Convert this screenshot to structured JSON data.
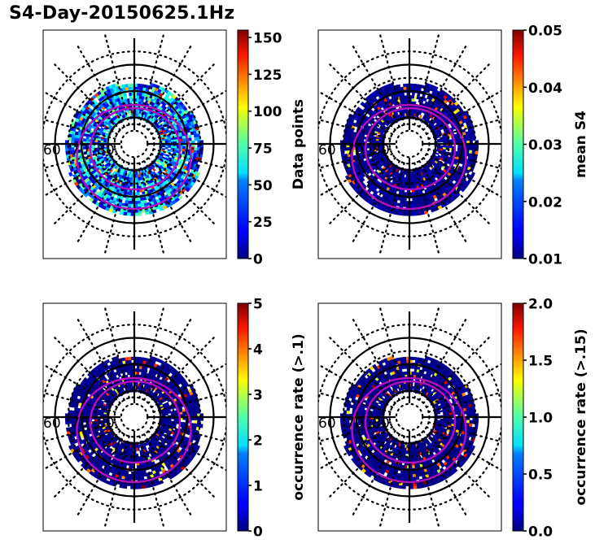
{
  "figure": {
    "title": "S4-Day-20150625.1Hz"
  },
  "chart_data": [
    {
      "type": "heatmap",
      "projection": "polar (north pole centered)",
      "position": "top-left",
      "title": "",
      "latitude_labels": [
        "60",
        "70",
        "80"
      ],
      "colormap": "jet",
      "colorbar": {
        "label": "Data points",
        "range": [
          0,
          155
        ],
        "ticks": [
          0,
          25,
          50,
          75,
          100,
          125,
          150
        ],
        "tick_labels": [
          "0",
          "25",
          "50",
          "75",
          "100",
          "125",
          "150"
        ]
      },
      "data_summary": "Ring of binned cells between ~62 and ~82 deg latitude; mostly 0-60 counts (blue/cyan) with scattered 90-130 (yellow/orange) cells",
      "value_mean": 40,
      "value_spread": 40,
      "overlays": [
        "auroral oval boundary (magenta, outer)",
        "auroral oval boundary (magenta, inner)"
      ]
    },
    {
      "type": "heatmap",
      "projection": "polar (north pole centered)",
      "position": "top-right",
      "latitude_labels": [
        "60",
        "70",
        "80"
      ],
      "colormap": "jet",
      "colorbar": {
        "label": "mean S4",
        "range": [
          0.01,
          0.05
        ],
        "ticks": [
          0.01,
          0.02,
          0.03,
          0.04,
          0.05
        ],
        "tick_labels": [
          "0.01",
          "0.02",
          "0.03",
          "0.04",
          "0.05"
        ]
      },
      "data_summary": "Ring mostly at ~0.01 (dark blue) with a few cells at 0.03-0.05 (cyan, yellow, dark red)",
      "value_mean": 0.0105,
      "value_spread": 0.002,
      "overlays": [
        "auroral oval boundary (magenta, outer)",
        "auroral oval boundary (magenta, inner)"
      ]
    },
    {
      "type": "heatmap",
      "projection": "polar (north pole centered)",
      "position": "bottom-left",
      "latitude_labels": [
        "60",
        "70",
        "80"
      ],
      "colormap": "jet",
      "colorbar": {
        "label": "occurrence rate (>.1)",
        "range": [
          0,
          5
        ],
        "ticks": [
          0,
          1,
          2,
          3,
          4,
          5
        ],
        "tick_labels": [
          "0",
          "1",
          "2",
          "3",
          "4",
          "5"
        ]
      },
      "data_summary": "Ring mostly at 0 (dark blue) with a few cells up to 5 (cyan, green, dark red)",
      "value_mean": 0.05,
      "value_spread": 0.1,
      "overlays": [
        "auroral oval boundary (magenta, outer)",
        "auroral oval boundary (magenta, inner)"
      ]
    },
    {
      "type": "heatmap",
      "projection": "polar (north pole centered)",
      "position": "bottom-right",
      "latitude_labels": [
        "60",
        "70",
        "80"
      ],
      "colormap": "jet",
      "colorbar": {
        "label": "occurrence rate (>.15)",
        "range": [
          0.0,
          2.0
        ],
        "ticks": [
          0.0,
          0.5,
          1.0,
          1.5,
          2.0
        ],
        "tick_labels": [
          "0.0",
          "0.5",
          "1.0",
          "1.5",
          "2.0"
        ]
      },
      "data_summary": "Ring mostly at 0.0 (dark blue) with a few cells up to 2.0 (cyan, yellow, orange, dark red)",
      "value_mean": 0.02,
      "value_spread": 0.04,
      "overlays": [
        "auroral oval boundary (magenta, outer)",
        "auroral oval boundary (magenta, inner)"
      ]
    }
  ],
  "colors": {
    "oval": "#b30fbf",
    "grid": "#000000"
  }
}
